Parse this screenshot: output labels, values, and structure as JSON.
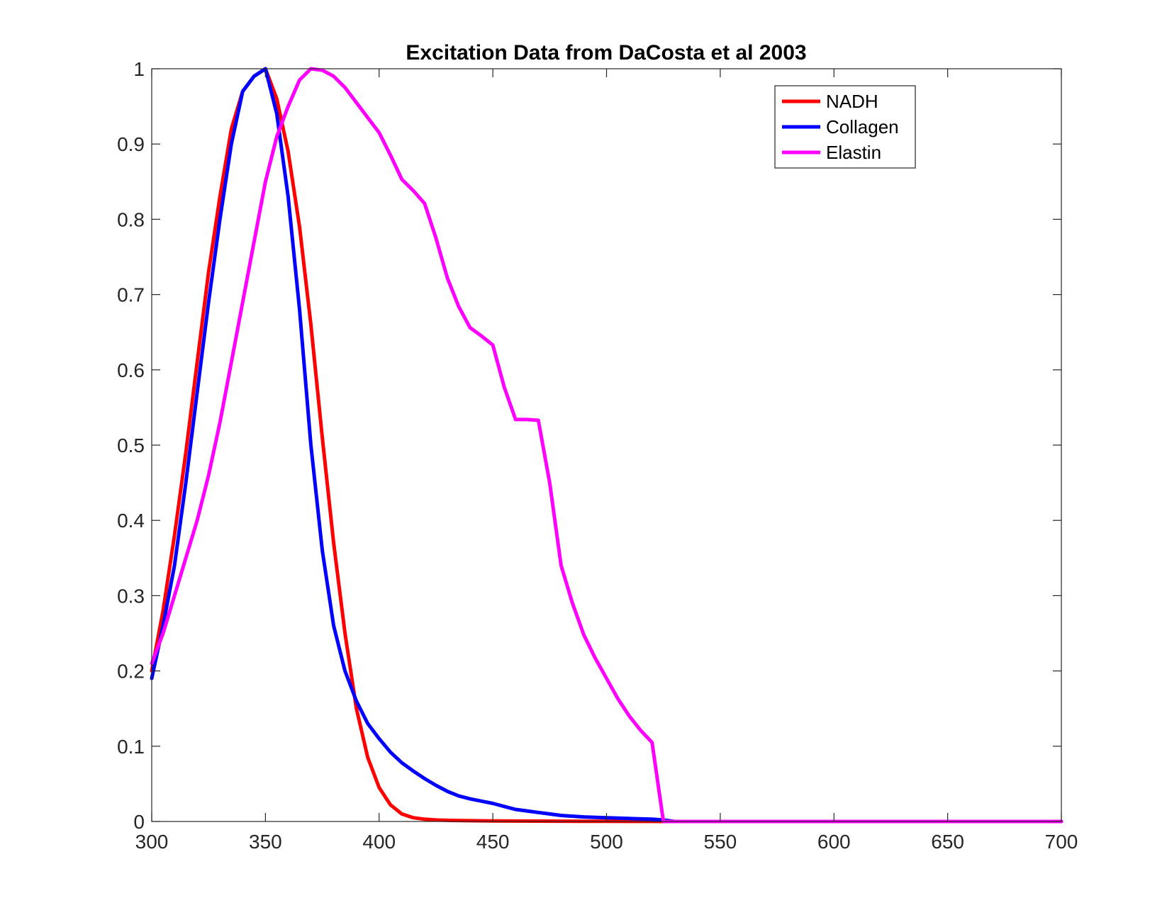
{
  "chart_data": {
    "type": "line",
    "title": "Excitation Data from DaCosta et al 2003",
    "xlabel": "",
    "ylabel": "",
    "xlim": [
      300,
      700
    ],
    "ylim": [
      0,
      1
    ],
    "xticks": [
      300,
      350,
      400,
      450,
      500,
      550,
      600,
      650,
      700
    ],
    "yticks": [
      0,
      0.1,
      0.2,
      0.3,
      0.4,
      0.5,
      0.6,
      0.7,
      0.8,
      0.9,
      1
    ],
    "ytick_labels": [
      "0",
      "0.1",
      "0.2",
      "0.3",
      "0.4",
      "0.5",
      "0.6",
      "0.7",
      "0.8",
      "0.9",
      "1"
    ],
    "grid": false,
    "legend_position": "top-right",
    "series": [
      {
        "name": "NADH",
        "color": "#ff0000",
        "x": [
          300,
          305,
          310,
          315,
          320,
          325,
          330,
          335,
          340,
          345,
          350,
          355,
          360,
          365,
          370,
          375,
          380,
          385,
          390,
          395,
          400,
          405,
          410,
          415,
          420,
          425,
          430,
          440,
          450,
          460,
          470,
          480,
          490,
          500,
          510,
          520,
          525,
          530,
          550,
          600,
          650,
          700
        ],
        "y": [
          0.2,
          0.28,
          0.38,
          0.49,
          0.61,
          0.73,
          0.83,
          0.92,
          0.97,
          0.99,
          1.0,
          0.96,
          0.89,
          0.79,
          0.66,
          0.51,
          0.37,
          0.25,
          0.15,
          0.085,
          0.045,
          0.022,
          0.01,
          0.005,
          0.003,
          0.002,
          0.0015,
          0.001,
          0.0008,
          0.0006,
          0.0005,
          0.0004,
          0.0003,
          0.0002,
          0.0001,
          0.0001,
          0,
          0,
          0,
          0,
          0,
          0
        ]
      },
      {
        "name": "Collagen",
        "color": "#0000ff",
        "x": [
          300,
          305,
          310,
          315,
          320,
          325,
          330,
          335,
          340,
          345,
          350,
          355,
          360,
          365,
          370,
          375,
          380,
          385,
          390,
          395,
          400,
          405,
          410,
          415,
          420,
          425,
          430,
          435,
          440,
          445,
          450,
          455,
          460,
          465,
          470,
          475,
          480,
          490,
          500,
          510,
          520,
          525,
          530,
          550,
          600,
          650,
          700
        ],
        "y": [
          0.19,
          0.26,
          0.34,
          0.45,
          0.57,
          0.69,
          0.8,
          0.9,
          0.97,
          0.99,
          1.0,
          0.94,
          0.83,
          0.68,
          0.5,
          0.36,
          0.26,
          0.2,
          0.16,
          0.13,
          0.11,
          0.092,
          0.078,
          0.067,
          0.057,
          0.048,
          0.04,
          0.034,
          0.03,
          0.027,
          0.024,
          0.02,
          0.016,
          0.014,
          0.012,
          0.01,
          0.008,
          0.006,
          0.005,
          0.004,
          0.003,
          0.002,
          0,
          0,
          0,
          0,
          0
        ]
      },
      {
        "name": "Elastin",
        "color": "#ff00ff",
        "x": [
          300,
          305,
          310,
          315,
          320,
          325,
          330,
          335,
          340,
          345,
          350,
          355,
          360,
          365,
          370,
          375,
          380,
          385,
          390,
          395,
          400,
          405,
          410,
          415,
          420,
          425,
          430,
          435,
          440,
          445,
          450,
          455,
          460,
          465,
          470,
          475,
          480,
          485,
          490,
          495,
          500,
          505,
          510,
          515,
          520,
          525,
          530,
          550,
          600,
          650,
          700
        ],
        "y": [
          0.21,
          0.25,
          0.3,
          0.35,
          0.4,
          0.46,
          0.53,
          0.61,
          0.69,
          0.77,
          0.85,
          0.91,
          0.95,
          0.985,
          1.0,
          0.998,
          0.99,
          0.975,
          0.955,
          0.935,
          0.915,
          0.885,
          0.853,
          0.838,
          0.821,
          0.775,
          0.722,
          0.684,
          0.656,
          0.645,
          0.633,
          0.577,
          0.534,
          0.534,
          0.533,
          0.45,
          0.34,
          0.29,
          0.248,
          0.217,
          0.19,
          0.163,
          0.14,
          0.121,
          0.105,
          0,
          0,
          0,
          0,
          0,
          0
        ]
      }
    ]
  }
}
